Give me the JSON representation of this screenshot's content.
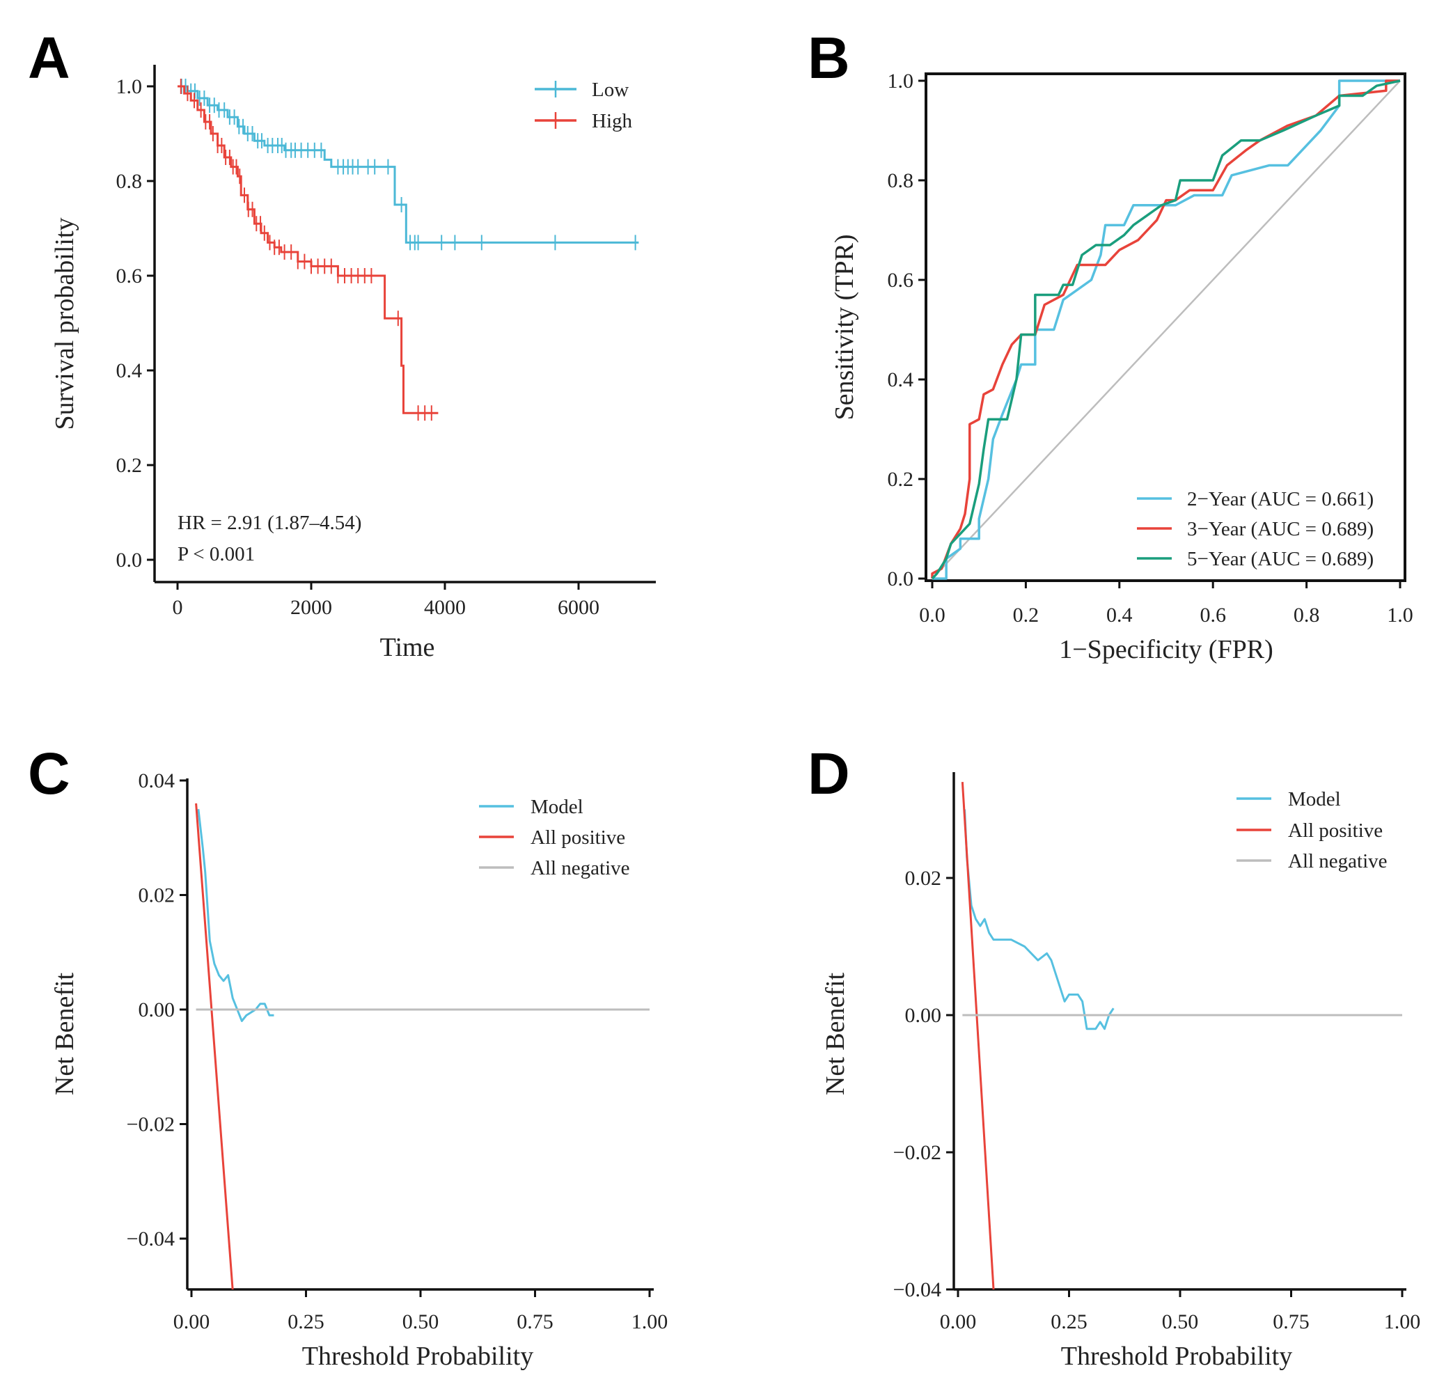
{
  "colors": {
    "low": "#4bb8d6",
    "high": "#e8433a",
    "y2": "#56c0e0",
    "y3": "#e8433a",
    "y5": "#1a9e7d",
    "gray": "#bdbdbd",
    "model": "#56c0e0",
    "allpos": "#e8433a",
    "allneg": "#bdbdbd"
  },
  "chart_data": [
    {
      "panel": "A",
      "type": "line",
      "subtype": "kaplan-meier",
      "xlabel": "Time",
      "ylabel": "Survival probability",
      "xlim": [
        0,
        7000
      ],
      "ylim": [
        0,
        1.0
      ],
      "xticks": [
        "0",
        "2000",
        "4000",
        "6000"
      ],
      "xtick_values": [
        0,
        2000,
        4000,
        6000
      ],
      "yticks": [
        "0.0",
        "0.2",
        "0.4",
        "0.6",
        "0.8",
        "1.0"
      ],
      "ytick_values": [
        0,
        0.2,
        0.4,
        0.6,
        0.8,
        1.0
      ],
      "annotations": [
        "HR = 2.91 (1.87–4.54)",
        "P < 0.001"
      ],
      "legend_position": "top-right",
      "series": [
        {
          "name": "Low",
          "color_key": "low",
          "steps": [
            [
              0,
              1.0
            ],
            [
              150,
              0.99
            ],
            [
              300,
              0.975
            ],
            [
              450,
              0.96
            ],
            [
              600,
              0.95
            ],
            [
              750,
              0.935
            ],
            [
              900,
              0.915
            ],
            [
              1000,
              0.9
            ],
            [
              1150,
              0.885
            ],
            [
              1300,
              0.875
            ],
            [
              1600,
              0.865
            ],
            [
              2200,
              0.845
            ],
            [
              2300,
              0.83
            ],
            [
              3250,
              0.75
            ],
            [
              3420,
              0.67
            ],
            [
              6900,
              0.67
            ]
          ],
          "censor": [
            60,
            120,
            200,
            260,
            330,
            400,
            480,
            550,
            620,
            700,
            780,
            850,
            920,
            980,
            1050,
            1120,
            1200,
            1260,
            1350,
            1420,
            1500,
            1560,
            1620,
            1700,
            1760,
            1850,
            1950,
            2050,
            2150,
            2400,
            2480,
            2550,
            2620,
            2700,
            2850,
            2950,
            3150,
            3350,
            3480,
            3550,
            3600,
            3950,
            4150,
            4550,
            5650,
            6850
          ]
        },
        {
          "name": "High",
          "color_key": "high",
          "steps": [
            [
              0,
              1.0
            ],
            [
              100,
              0.985
            ],
            [
              200,
              0.97
            ],
            [
              300,
              0.95
            ],
            [
              400,
              0.925
            ],
            [
              500,
              0.9
            ],
            [
              600,
              0.875
            ],
            [
              700,
              0.85
            ],
            [
              800,
              0.83
            ],
            [
              900,
              0.81
            ],
            [
              950,
              0.77
            ],
            [
              1050,
              0.74
            ],
            [
              1150,
              0.71
            ],
            [
              1250,
              0.69
            ],
            [
              1350,
              0.67
            ],
            [
              1450,
              0.66
            ],
            [
              1550,
              0.65
            ],
            [
              1800,
              0.63
            ],
            [
              2000,
              0.62
            ],
            [
              2400,
              0.6
            ],
            [
              3100,
              0.51
            ],
            [
              3350,
              0.41
            ],
            [
              3380,
              0.31
            ],
            [
              3900,
              0.31
            ]
          ],
          "censor": [
            50,
            150,
            250,
            350,
            420,
            480,
            530,
            600,
            660,
            720,
            780,
            830,
            880,
            930,
            1000,
            1060,
            1120,
            1180,
            1240,
            1300,
            1380,
            1450,
            1520,
            1600,
            1700,
            1800,
            1900,
            2000,
            2100,
            2200,
            2300,
            2400,
            2500,
            2600,
            2700,
            2800,
            2900,
            3300,
            3600,
            3700,
            3800
          ]
        }
      ]
    },
    {
      "panel": "B",
      "type": "line",
      "subtype": "roc",
      "xlabel": "1−Specificity (FPR)",
      "ylabel": "Sensitivity (TPR)",
      "xlim": [
        0,
        1
      ],
      "ylim": [
        0,
        1
      ],
      "xticks": [
        "0.0",
        "0.2",
        "0.4",
        "0.6",
        "0.8",
        "1.0"
      ],
      "xtick_values": [
        0,
        0.2,
        0.4,
        0.6,
        0.8,
        1.0
      ],
      "yticks": [
        "0.0",
        "0.2",
        "0.4",
        "0.6",
        "0.8",
        "1.0"
      ],
      "ytick_values": [
        0,
        0.2,
        0.4,
        0.6,
        0.8,
        1.0
      ],
      "legend_position": "bottom-right",
      "series": [
        {
          "name": "2−Year (AUC = 0.661)",
          "color_key": "y2",
          "auc": 0.661,
          "points": [
            [
              0,
              0
            ],
            [
              0.03,
              0
            ],
            [
              0.03,
              0.04
            ],
            [
              0.06,
              0.06
            ],
            [
              0.06,
              0.08
            ],
            [
              0.1,
              0.08
            ],
            [
              0.1,
              0.12
            ],
            [
              0.12,
              0.2
            ],
            [
              0.13,
              0.28
            ],
            [
              0.15,
              0.33
            ],
            [
              0.18,
              0.4
            ],
            [
              0.19,
              0.43
            ],
            [
              0.22,
              0.43
            ],
            [
              0.22,
              0.5
            ],
            [
              0.26,
              0.5
            ],
            [
              0.28,
              0.56
            ],
            [
              0.34,
              0.6
            ],
            [
              0.36,
              0.65
            ],
            [
              0.37,
              0.71
            ],
            [
              0.41,
              0.71
            ],
            [
              0.43,
              0.75
            ],
            [
              0.52,
              0.75
            ],
            [
              0.56,
              0.77
            ],
            [
              0.62,
              0.77
            ],
            [
              0.64,
              0.81
            ],
            [
              0.72,
              0.83
            ],
            [
              0.76,
              0.83
            ],
            [
              0.8,
              0.87
            ],
            [
              0.83,
              0.9
            ],
            [
              0.87,
              0.95
            ],
            [
              0.87,
              1
            ],
            [
              1,
              1
            ]
          ]
        },
        {
          "name": "3−Year (AUC = 0.689)",
          "color_key": "y3",
          "auc": 0.689,
          "points": [
            [
              0,
              0
            ],
            [
              0,
              0.01
            ],
            [
              0.02,
              0.02
            ],
            [
              0.04,
              0.07
            ],
            [
              0.06,
              0.1
            ],
            [
              0.07,
              0.13
            ],
            [
              0.08,
              0.2
            ],
            [
              0.08,
              0.31
            ],
            [
              0.1,
              0.32
            ],
            [
              0.11,
              0.37
            ],
            [
              0.13,
              0.38
            ],
            [
              0.15,
              0.43
            ],
            [
              0.17,
              0.47
            ],
            [
              0.19,
              0.49
            ],
            [
              0.22,
              0.49
            ],
            [
              0.24,
              0.55
            ],
            [
              0.28,
              0.57
            ],
            [
              0.31,
              0.63
            ],
            [
              0.37,
              0.63
            ],
            [
              0.4,
              0.66
            ],
            [
              0.44,
              0.68
            ],
            [
              0.48,
              0.72
            ],
            [
              0.5,
              0.76
            ],
            [
              0.52,
              0.76
            ],
            [
              0.55,
              0.78
            ],
            [
              0.6,
              0.78
            ],
            [
              0.63,
              0.83
            ],
            [
              0.67,
              0.86
            ],
            [
              0.7,
              0.88
            ],
            [
              0.76,
              0.91
            ],
            [
              0.82,
              0.93
            ],
            [
              0.87,
              0.97
            ],
            [
              0.97,
              0.98
            ],
            [
              0.97,
              1
            ],
            [
              1,
              1
            ]
          ]
        },
        {
          "name": "5−Year (AUC = 0.689)",
          "color_key": "y5",
          "auc": 0.689,
          "points": [
            [
              0,
              0
            ],
            [
              0.01,
              0.01
            ],
            [
              0.03,
              0.04
            ],
            [
              0.04,
              0.07
            ],
            [
              0.06,
              0.09
            ],
            [
              0.08,
              0.11
            ],
            [
              0.1,
              0.19
            ],
            [
              0.11,
              0.26
            ],
            [
              0.12,
              0.32
            ],
            [
              0.16,
              0.32
            ],
            [
              0.18,
              0.4
            ],
            [
              0.19,
              0.49
            ],
            [
              0.22,
              0.49
            ],
            [
              0.22,
              0.57
            ],
            [
              0.27,
              0.57
            ],
            [
              0.28,
              0.59
            ],
            [
              0.3,
              0.59
            ],
            [
              0.32,
              0.65
            ],
            [
              0.35,
              0.67
            ],
            [
              0.38,
              0.67
            ],
            [
              0.41,
              0.69
            ],
            [
              0.43,
              0.71
            ],
            [
              0.46,
              0.73
            ],
            [
              0.49,
              0.75
            ],
            [
              0.52,
              0.76
            ],
            [
              0.53,
              0.8
            ],
            [
              0.6,
              0.8
            ],
            [
              0.62,
              0.85
            ],
            [
              0.66,
              0.88
            ],
            [
              0.7,
              0.88
            ],
            [
              0.75,
              0.9
            ],
            [
              0.82,
              0.93
            ],
            [
              0.87,
              0.95
            ],
            [
              0.87,
              0.97
            ],
            [
              0.92,
              0.97
            ],
            [
              0.95,
              0.99
            ],
            [
              1,
              1
            ]
          ]
        }
      ],
      "reference_line": [
        [
          0,
          0
        ],
        [
          1,
          1
        ]
      ]
    },
    {
      "panel": "C",
      "type": "line",
      "subtype": "decision-curve",
      "xlabel": "Threshold Probability",
      "ylabel": "Net Benefit",
      "xlim": [
        0,
        1
      ],
      "ylim": [
        -0.049,
        0.04
      ],
      "xticks": [
        "0.00",
        "0.25",
        "0.50",
        "0.75",
        "1.00"
      ],
      "xtick_values": [
        0,
        0.25,
        0.5,
        0.75,
        1.0
      ],
      "yticks": [
        "−0.04",
        "−0.02",
        "0.00",
        "0.02",
        "0.04"
      ],
      "ytick_values": [
        -0.04,
        -0.02,
        0,
        0.02,
        0.04
      ],
      "legend_position": "top-right",
      "series": [
        {
          "name": "Model",
          "color_key": "model",
          "points": [
            [
              0.015,
              0.035
            ],
            [
              0.025,
              0.028
            ],
            [
              0.03,
              0.024
            ],
            [
              0.04,
              0.012
            ],
            [
              0.05,
              0.008
            ],
            [
              0.06,
              0.006
            ],
            [
              0.07,
              0.005
            ],
            [
              0.08,
              0.006
            ],
            [
              0.09,
              0.002
            ],
            [
              0.1,
              0
            ],
            [
              0.11,
              -0.002
            ],
            [
              0.12,
              -0.001
            ],
            [
              0.14,
              0
            ],
            [
              0.15,
              0.001
            ],
            [
              0.16,
              0.001
            ],
            [
              0.17,
              -0.001
            ],
            [
              0.18,
              -0.001
            ]
          ]
        },
        {
          "name": "All positive",
          "color_key": "allpos",
          "points": [
            [
              0.01,
              0.036
            ],
            [
              0.09,
              -0.049
            ]
          ]
        },
        {
          "name": "All negative",
          "color_key": "allneg",
          "points": [
            [
              0.01,
              0
            ],
            [
              1.0,
              0
            ]
          ]
        }
      ]
    },
    {
      "panel": "D",
      "type": "line",
      "subtype": "decision-curve",
      "xlabel": "Threshold Probability",
      "ylabel": "Net Benefit",
      "xlim": [
        0,
        1
      ],
      "ylim": [
        -0.04,
        0.0355
      ],
      "xticks": [
        "0.00",
        "0.25",
        "0.50",
        "0.75",
        "1.00"
      ],
      "xtick_values": [
        0,
        0.25,
        0.5,
        0.75,
        1.0
      ],
      "yticks": [
        "−0.04",
        "−0.02",
        "0.00",
        "0.02"
      ],
      "ytick_values": [
        -0.04,
        -0.02,
        0,
        0.02
      ],
      "legend_position": "top-right",
      "series": [
        {
          "name": "Model",
          "color_key": "model",
          "points": [
            [
              0.015,
              0.03
            ],
            [
              0.02,
              0.023
            ],
            [
              0.03,
              0.016
            ],
            [
              0.04,
              0.014
            ],
            [
              0.05,
              0.013
            ],
            [
              0.06,
              0.014
            ],
            [
              0.07,
              0.012
            ],
            [
              0.08,
              0.011
            ],
            [
              0.1,
              0.011
            ],
            [
              0.12,
              0.011
            ],
            [
              0.15,
              0.01
            ],
            [
              0.18,
              0.008
            ],
            [
              0.2,
              0.009
            ],
            [
              0.21,
              0.008
            ],
            [
              0.23,
              0.004
            ],
            [
              0.24,
              0.002
            ],
            [
              0.25,
              0.003
            ],
            [
              0.27,
              0.003
            ],
            [
              0.28,
              0.002
            ],
            [
              0.29,
              -0.002
            ],
            [
              0.3,
              -0.002
            ],
            [
              0.31,
              -0.002
            ],
            [
              0.32,
              -0.001
            ],
            [
              0.33,
              -0.002
            ],
            [
              0.34,
              0
            ],
            [
              0.35,
              0.001
            ]
          ]
        },
        {
          "name": "All positive",
          "color_key": "allpos",
          "points": [
            [
              0.01,
              0.034
            ],
            [
              0.08,
              -0.04
            ]
          ]
        },
        {
          "name": "All negative",
          "color_key": "allneg",
          "points": [
            [
              0.01,
              0
            ],
            [
              1.0,
              0
            ]
          ]
        }
      ]
    }
  ]
}
